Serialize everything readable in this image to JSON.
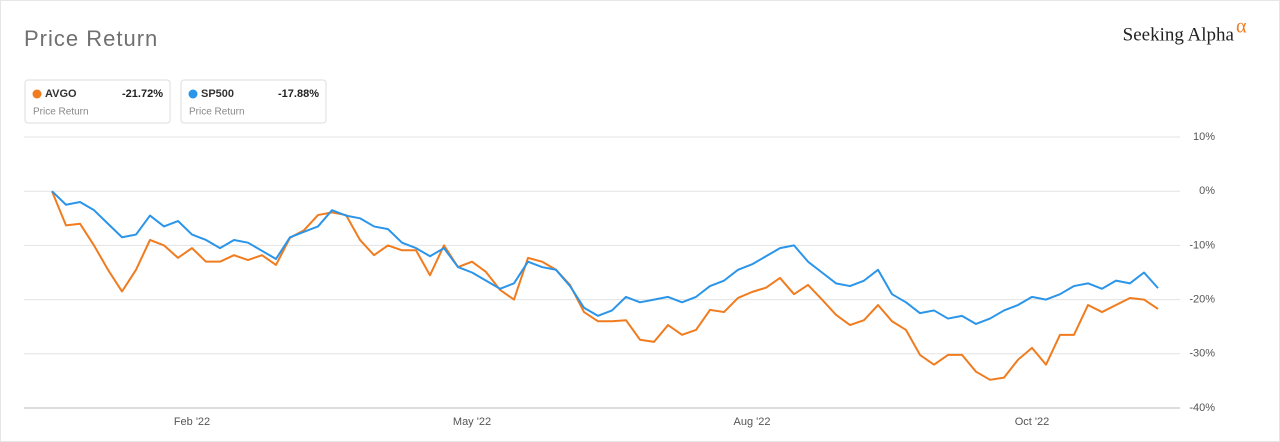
{
  "brand": "Seeking Alpha",
  "brand_mark": "α",
  "chart_data": {
    "type": "line",
    "title": "Price Return",
    "categories": [
      null,
      null,
      null,
      null,
      null,
      null,
      null,
      null,
      null,
      null,
      "Feb '22",
      null,
      null,
      null,
      null,
      null,
      null,
      null,
      null,
      null,
      null,
      null,
      null,
      null,
      null,
      null,
      null,
      null,
      null,
      null,
      "May '22",
      null,
      null,
      null,
      null,
      null,
      null,
      null,
      null,
      null,
      null,
      null,
      null,
      null,
      null,
      null,
      null,
      null,
      null,
      null,
      "Aug '22",
      null,
      null,
      null,
      null,
      null,
      null,
      null,
      null,
      null,
      null,
      null,
      null,
      null,
      null,
      null,
      null,
      null,
      null,
      null,
      "Oct '22",
      null,
      null,
      null,
      null,
      null,
      null,
      null,
      null,
      null
    ],
    "series": [
      {
        "name": "AVGO",
        "color": "#f07c1f",
        "change": {
          "value": -21.72,
          "label": "-21.72%"
        },
        "values": [
          0,
          -6.3,
          -6,
          -10,
          -14.5,
          -18.5,
          -14.5,
          -9,
          -10,
          -12.3,
          -10.5,
          -13,
          -13,
          -11.8,
          -12.7,
          -11.8,
          -13.6,
          -8.6,
          -7.2,
          -4.4,
          -3.9,
          -4.4,
          -9,
          -11.8,
          -10,
          -10.9,
          -10.9,
          -15.5,
          -10,
          -14,
          -13,
          -14.9,
          -18.2,
          -20,
          -12.3,
          -13,
          -14.5,
          -17.3,
          -22.3,
          -24,
          -24,
          -23.8,
          -27.4,
          -27.8,
          -24.7,
          -26.5,
          -25.6,
          -21.9,
          -22.3,
          -19.7,
          -18.6,
          -17.8,
          -16,
          -19,
          -17.3,
          -20,
          -22.8,
          -24.7,
          -23.8,
          -21,
          -24,
          -25.6,
          -30.2,
          -32,
          -30.2,
          -30.2,
          -33.3,
          -34.8,
          -34.4,
          -31.1,
          -28.9,
          -32,
          -26.5,
          -26.5,
          -21,
          -22.3,
          -21,
          -19.7,
          -20,
          -21.72
        ]
      },
      {
        "name": "SP500",
        "color": "#2b95e9",
        "change": {
          "value": -17.88,
          "label": "-17.88%"
        },
        "values": [
          0,
          -2.5,
          -2,
          -3.5,
          -6,
          -8.5,
          -8,
          -4.5,
          -6.5,
          -5.5,
          -8,
          -9,
          -10.5,
          -9,
          -9.5,
          -11,
          -12.5,
          -8.5,
          -7.5,
          -6.5,
          -3.5,
          -4.5,
          -5,
          -6.5,
          -7,
          -9.5,
          -10.5,
          -12,
          -10.5,
          -14,
          -15,
          -16.5,
          -18,
          -17,
          -13,
          -14,
          -14.5,
          -17.5,
          -21.5,
          -23,
          -22,
          -19.5,
          -20.5,
          -20,
          -19.5,
          -20.5,
          -19.5,
          -17.5,
          -16.5,
          -14.5,
          -13.5,
          -12,
          -10.5,
          -10,
          -13,
          -15,
          -17,
          -17.5,
          -16.5,
          -14.5,
          -19,
          -20.5,
          -22.5,
          -22,
          -23.5,
          -23,
          -24.5,
          -23.5,
          -22,
          -21,
          -19.5,
          -20,
          -19,
          -17.5,
          -17,
          -18,
          -16.5,
          -17,
          -15,
          -17.88
        ]
      }
    ],
    "ylim": [
      -40,
      10
    ],
    "yticks": [
      {
        "value": -40,
        "label": "-40%"
      },
      {
        "value": -30,
        "label": "-30%"
      },
      {
        "value": -20,
        "label": "-20%"
      },
      {
        "value": -10,
        "label": "-10%"
      },
      {
        "value": 0,
        "label": "0%"
      },
      {
        "value": 10,
        "label": "10%"
      }
    ],
    "grid": true
  }
}
